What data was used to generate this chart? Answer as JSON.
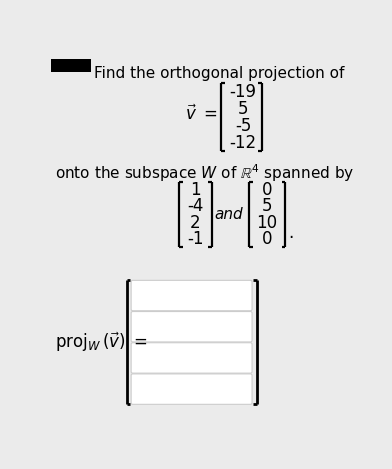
{
  "bg_color": "#ebebeb",
  "title_text": "Find the orthogonal projection of",
  "v_vector": [
    "-19",
    "5",
    "-5",
    "-12"
  ],
  "subspace_text_part1": "onto the subspace ",
  "subspace_text_W": "W",
  "subspace_text_part2": " of ",
  "subspace_text_R4": "$\\mathbb{R}^4$",
  "subspace_text_part3": " spanned by",
  "u1_vector": [
    "1",
    "-4",
    "2",
    "-1"
  ],
  "u2_vector": [
    "0",
    "5",
    "10",
    "0"
  ],
  "and_text": "and",
  "period_text": ".",
  "font_size_main": 11,
  "font_size_matrix": 12,
  "font_size_proj": 12
}
